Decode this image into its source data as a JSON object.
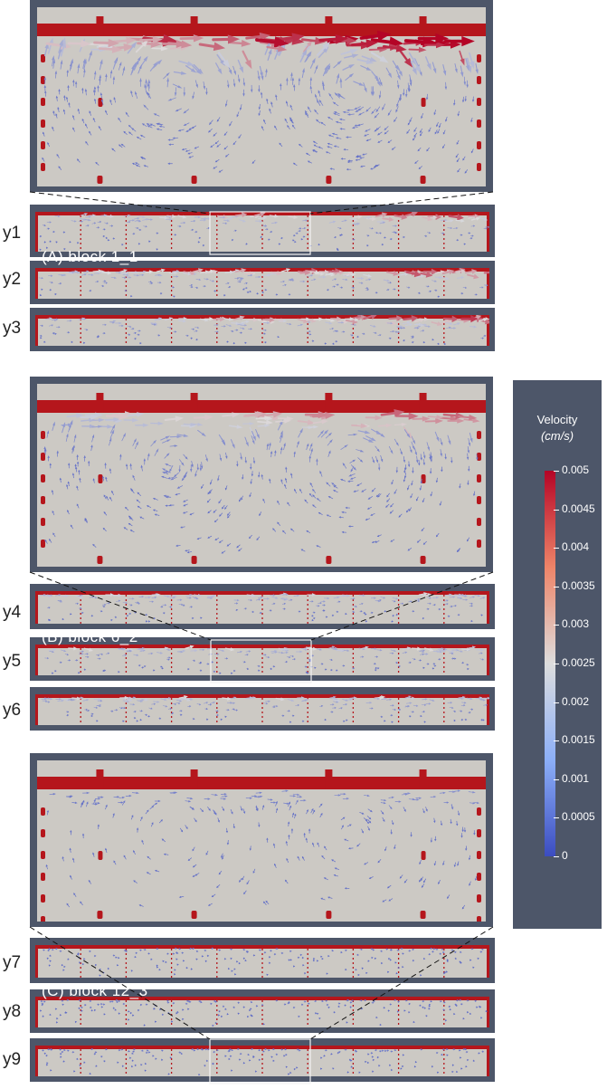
{
  "panels": [
    {
      "id": "A",
      "label": "(A)   block 1_1",
      "rows": [
        "y1",
        "y2",
        "y3"
      ],
      "max_level": 1.0
    },
    {
      "id": "B",
      "label": "(B)   block 6_2",
      "rows": [
        "y4",
        "y5",
        "y6"
      ],
      "max_level": 0.62
    },
    {
      "id": "C",
      "label": "(C)   block 12_3",
      "rows": [
        "y7",
        "y8",
        "y9"
      ],
      "max_level": 0.12
    }
  ],
  "colorbar": {
    "title": "Velocity",
    "unit": "(cm/s)",
    "ticks": [
      "0.005",
      "0.0045",
      "0.004",
      "0.0035",
      "0.003",
      "0.0025",
      "0.002",
      "0.0015",
      "0.001",
      "0.0005",
      "0"
    ],
    "colors": {
      "low": "#3b4cc0",
      "mid": "#dddddd",
      "high": "#b40426"
    }
  },
  "colors": {
    "frame": "#4d5669",
    "field": "#ccc9c4",
    "wall": "#b5161c"
  }
}
